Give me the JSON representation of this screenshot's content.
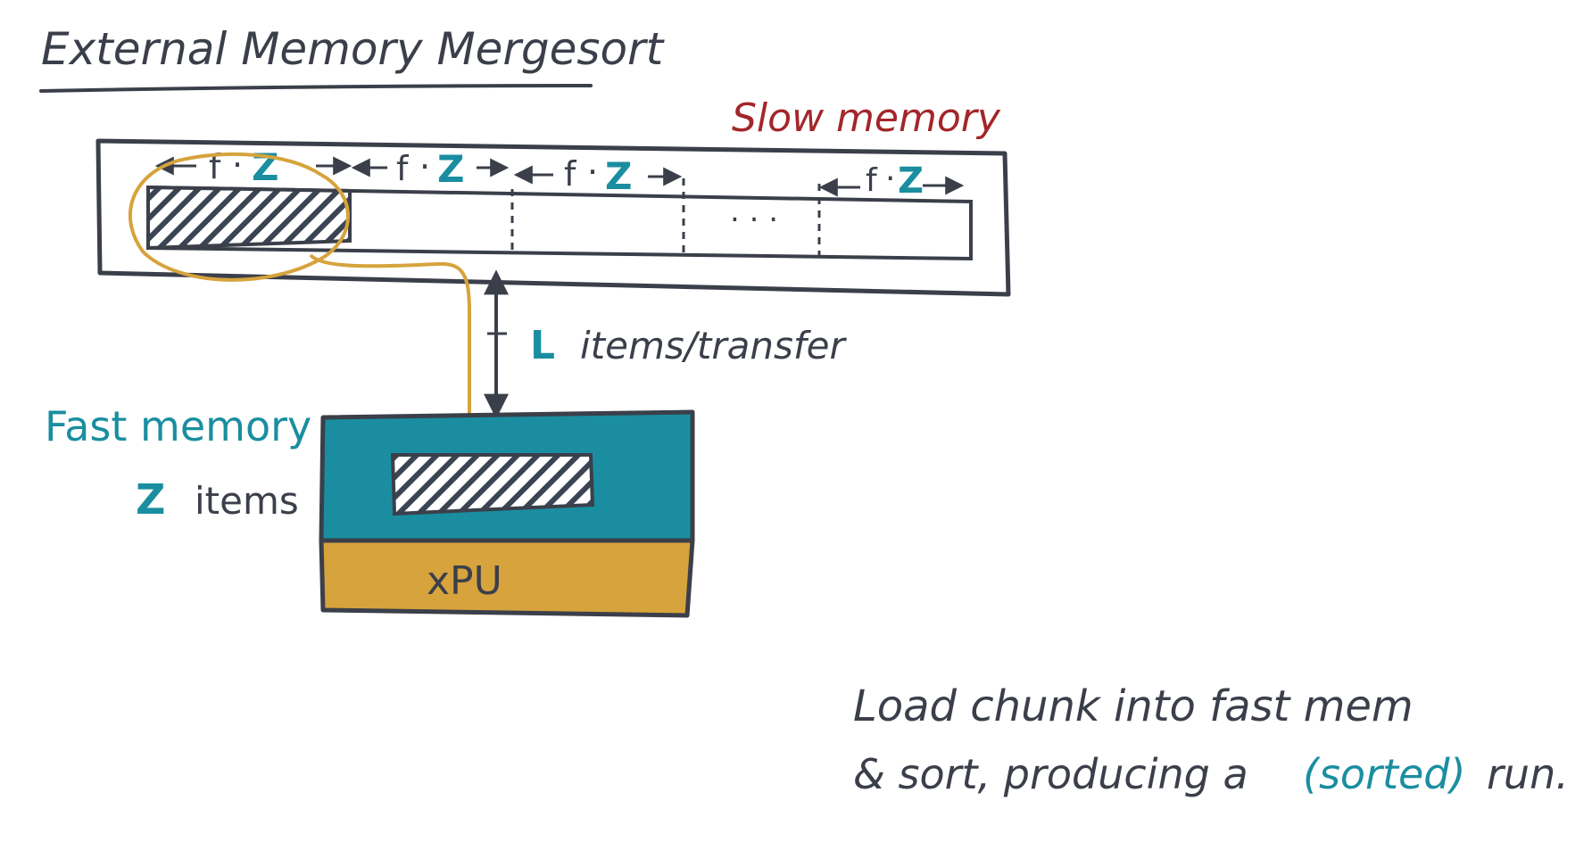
{
  "title": "External Memory Mergesort",
  "slow_memory": {
    "label": "Slow memory",
    "chunk_label_f": "f",
    "chunk_label_dot": "·",
    "chunk_label_z": "Z",
    "ellipsis": ". . ."
  },
  "transfer": {
    "variable": "L",
    "label": "items/transfer"
  },
  "fast_memory": {
    "label": "Fast memory",
    "capacity_variable": "Z",
    "capacity_label": "items"
  },
  "processor": {
    "label": "xPU"
  },
  "caption": {
    "line1": "Load chunk into fast mem",
    "line2_prefix": "& sort, producing a",
    "line2_highlight": "(sorted)",
    "line2_suffix": "run."
  },
  "colors": {
    "ink": "#3b3f4a",
    "teal": "#1a8ea0",
    "mustard": "#d6a33c",
    "red": "#a3262a",
    "hatch": "#3b4452"
  }
}
